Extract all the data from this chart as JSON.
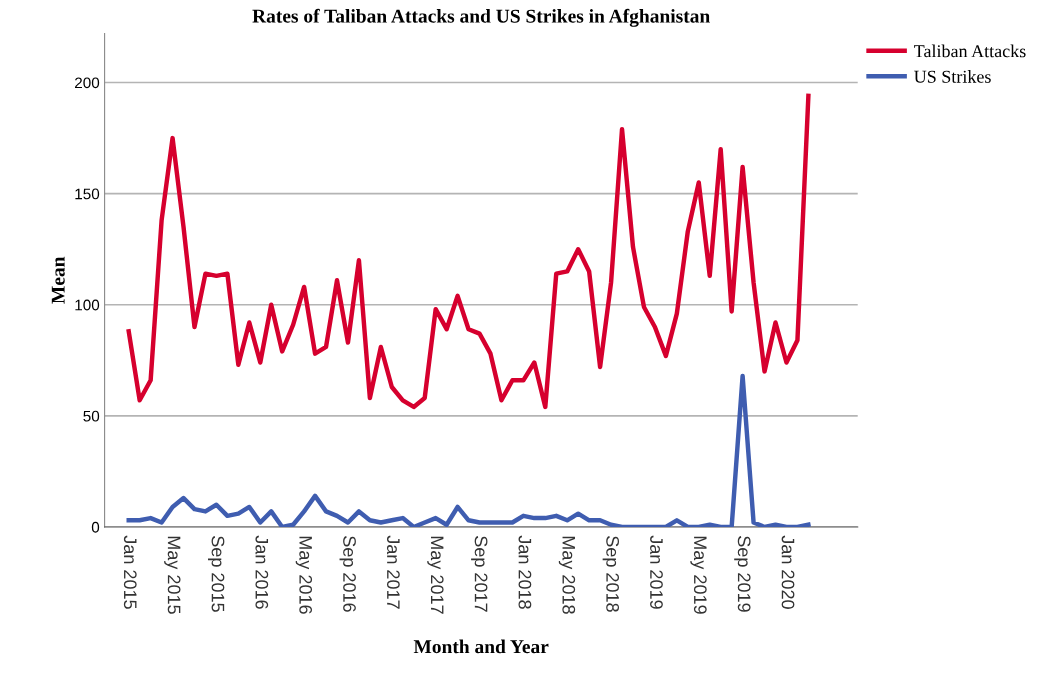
{
  "chart_data": {
    "type": "line",
    "title": "Rates of Taliban Attacks and US Strikes in Afghanistan",
    "xlabel": "Month and Year",
    "ylabel": "Mean",
    "categories": [
      "Jan 2015",
      null,
      null,
      null,
      "May 2015",
      null,
      null,
      null,
      "Sep 2015",
      null,
      null,
      null,
      "Jan 2016",
      null,
      null,
      null,
      "May 2016",
      null,
      null,
      null,
      "Sep 2016",
      null,
      null,
      null,
      "Jan 2017",
      null,
      null,
      null,
      "May 2017",
      null,
      null,
      null,
      "Sep 2017",
      null,
      null,
      null,
      "Jan 2018",
      null,
      null,
      null,
      "May 2018",
      null,
      null,
      null,
      "Sep 2018",
      null,
      null,
      null,
      "Jan 2019",
      null,
      null,
      null,
      "May 2019",
      null,
      null,
      null,
      "Sep 2019",
      null,
      null,
      null,
      "Jan 2020",
      null,
      null
    ],
    "series": [
      {
        "name": "Taliban Attacks",
        "color": "#d6002e",
        "values": [
          88,
          57,
          66,
          138,
          175,
          135,
          90,
          114,
          113,
          114,
          73,
          92,
          74,
          100,
          79,
          91,
          108,
          78,
          81,
          111,
          83,
          120,
          58,
          81,
          63,
          57,
          54,
          58,
          98,
          89,
          104,
          89,
          87,
          78,
          57,
          66,
          66,
          74,
          54,
          114,
          115,
          125,
          115,
          72,
          110,
          179,
          126,
          99,
          90,
          77,
          96,
          133,
          155,
          113,
          170,
          97,
          162,
          110,
          70,
          92,
          74,
          84,
          194
        ]
      },
      {
        "name": "US Strikes",
        "color": "#3f5db0",
        "values": [
          3,
          3,
          4,
          2,
          9,
          13,
          8,
          7,
          10,
          5,
          6,
          9,
          2,
          7,
          0,
          1,
          7,
          14,
          7,
          5,
          2,
          7,
          3,
          2,
          3,
          4,
          0,
          2,
          4,
          1,
          9,
          3,
          2,
          2,
          2,
          2,
          5,
          4,
          4,
          5,
          3,
          6,
          3,
          3,
          1,
          0,
          0,
          0,
          0,
          0,
          3,
          0,
          0,
          1,
          0,
          0,
          68,
          2,
          0,
          1,
          0,
          0,
          1
        ]
      }
    ],
    "ylim": [
      0,
      222
    ],
    "yticks": [
      0,
      50,
      100,
      150,
      200
    ],
    "grid": "y",
    "legend": "top right",
    "line_style": "solid",
    "marker": "none"
  }
}
